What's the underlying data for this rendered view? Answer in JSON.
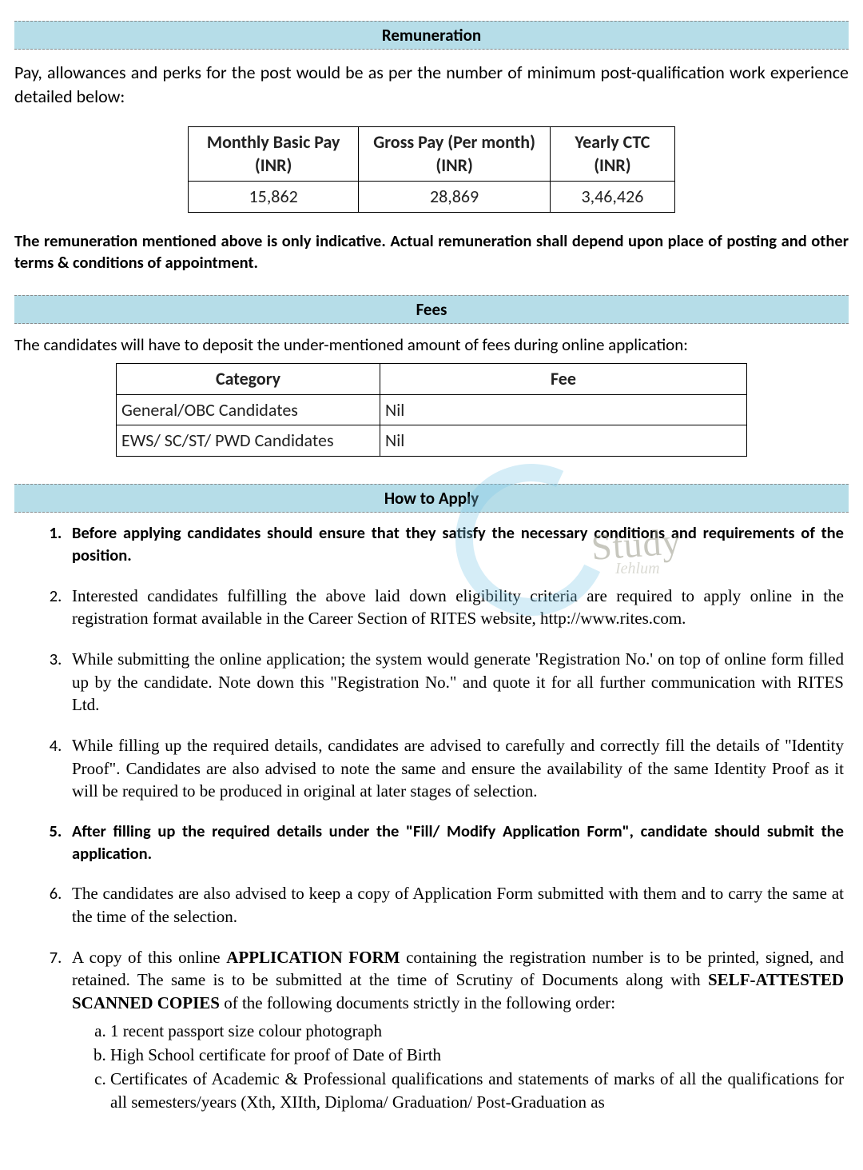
{
  "sections": {
    "remuneration": {
      "title": "Remuneration",
      "intro": "Pay, allowances and perks for the post would be as per the number of minimum post-qualification work experience detailed below:",
      "table": {
        "headers": [
          "Monthly Basic Pay (INR)",
          "Gross Pay (Per month) (INR)",
          "Yearly CTC (INR)"
        ],
        "row": [
          "15,862",
          "28,869",
          "3,46,426"
        ]
      },
      "note": "The remuneration mentioned above is only indicative. Actual remuneration shall depend upon place of posting and other terms & conditions of appointment."
    },
    "fees": {
      "title": "Fees",
      "intro": "The candidates will have to deposit the under-mentioned amount of fees during online application:",
      "table": {
        "headers": [
          "Category",
          "Fee"
        ],
        "rows": [
          [
            "General/OBC Candidates",
            "Nil"
          ],
          [
            "EWS/ SC/ST/ PWD Candidates",
            "Nil"
          ]
        ]
      }
    },
    "how_to_apply": {
      "title": "How to Apply",
      "items": [
        {
          "bold": true,
          "text": "Before applying candidates should ensure that they satisfy the necessary conditions and requirements of the position."
        },
        {
          "bold": false,
          "serif": true,
          "html": "Interested candidates fulfilling the above laid down eligibility criteria are required to apply online in the registration format available in the Career Section of RITES website, http://www.rites.com."
        },
        {
          "bold": false,
          "serif": true,
          "html": "While submitting the online application; the system would generate 'Registration No.' on top of online form filled up by the candidate. Note down this \"Registration No.\" and quote it for all further communication with RITES Ltd."
        },
        {
          "bold": false,
          "serif": true,
          "html": "While filling up the required details, candidates are advised to carefully and correctly fill the details of \"Identity Proof\". Candidates are also advised to note the same and ensure the availability of the same Identity Proof as it will be required to be produced in original at later stages of selection."
        },
        {
          "bold": true,
          "text": "After filling up the required details under the \"Fill/ Modify Application Form\", candidate should submit the application."
        },
        {
          "bold": false,
          "serif": true,
          "html": "The candidates are also advised to keep a copy of Application Form submitted with them and to carry the same at the time of the selection."
        },
        {
          "bold": false,
          "serif": true,
          "html": "A copy of this online <b>APPLICATION FORM</b> containing the registration number is to be printed, signed, and retained. The same is to be submitted at the time of Scrutiny of Documents along with <b>SELF-ATTESTED SCANNED COPIES</b> of the following documents strictly in the following order:",
          "sub": [
            "1 recent passport size colour photograph",
            "High School certificate for proof of Date of Birth",
            "Certificates of Academic & Professional qualifications and statements of marks of all the qualifications for all semesters/years (Xth, XIIth, Diploma/ Graduation/ Post-Graduation as"
          ]
        }
      ]
    }
  },
  "colors": {
    "header_bg": "#b6dde8",
    "border": "#000000",
    "watermark_ring": "#7fc8e8"
  },
  "watermark": {
    "title": "Study",
    "sub": "Iehlum"
  }
}
